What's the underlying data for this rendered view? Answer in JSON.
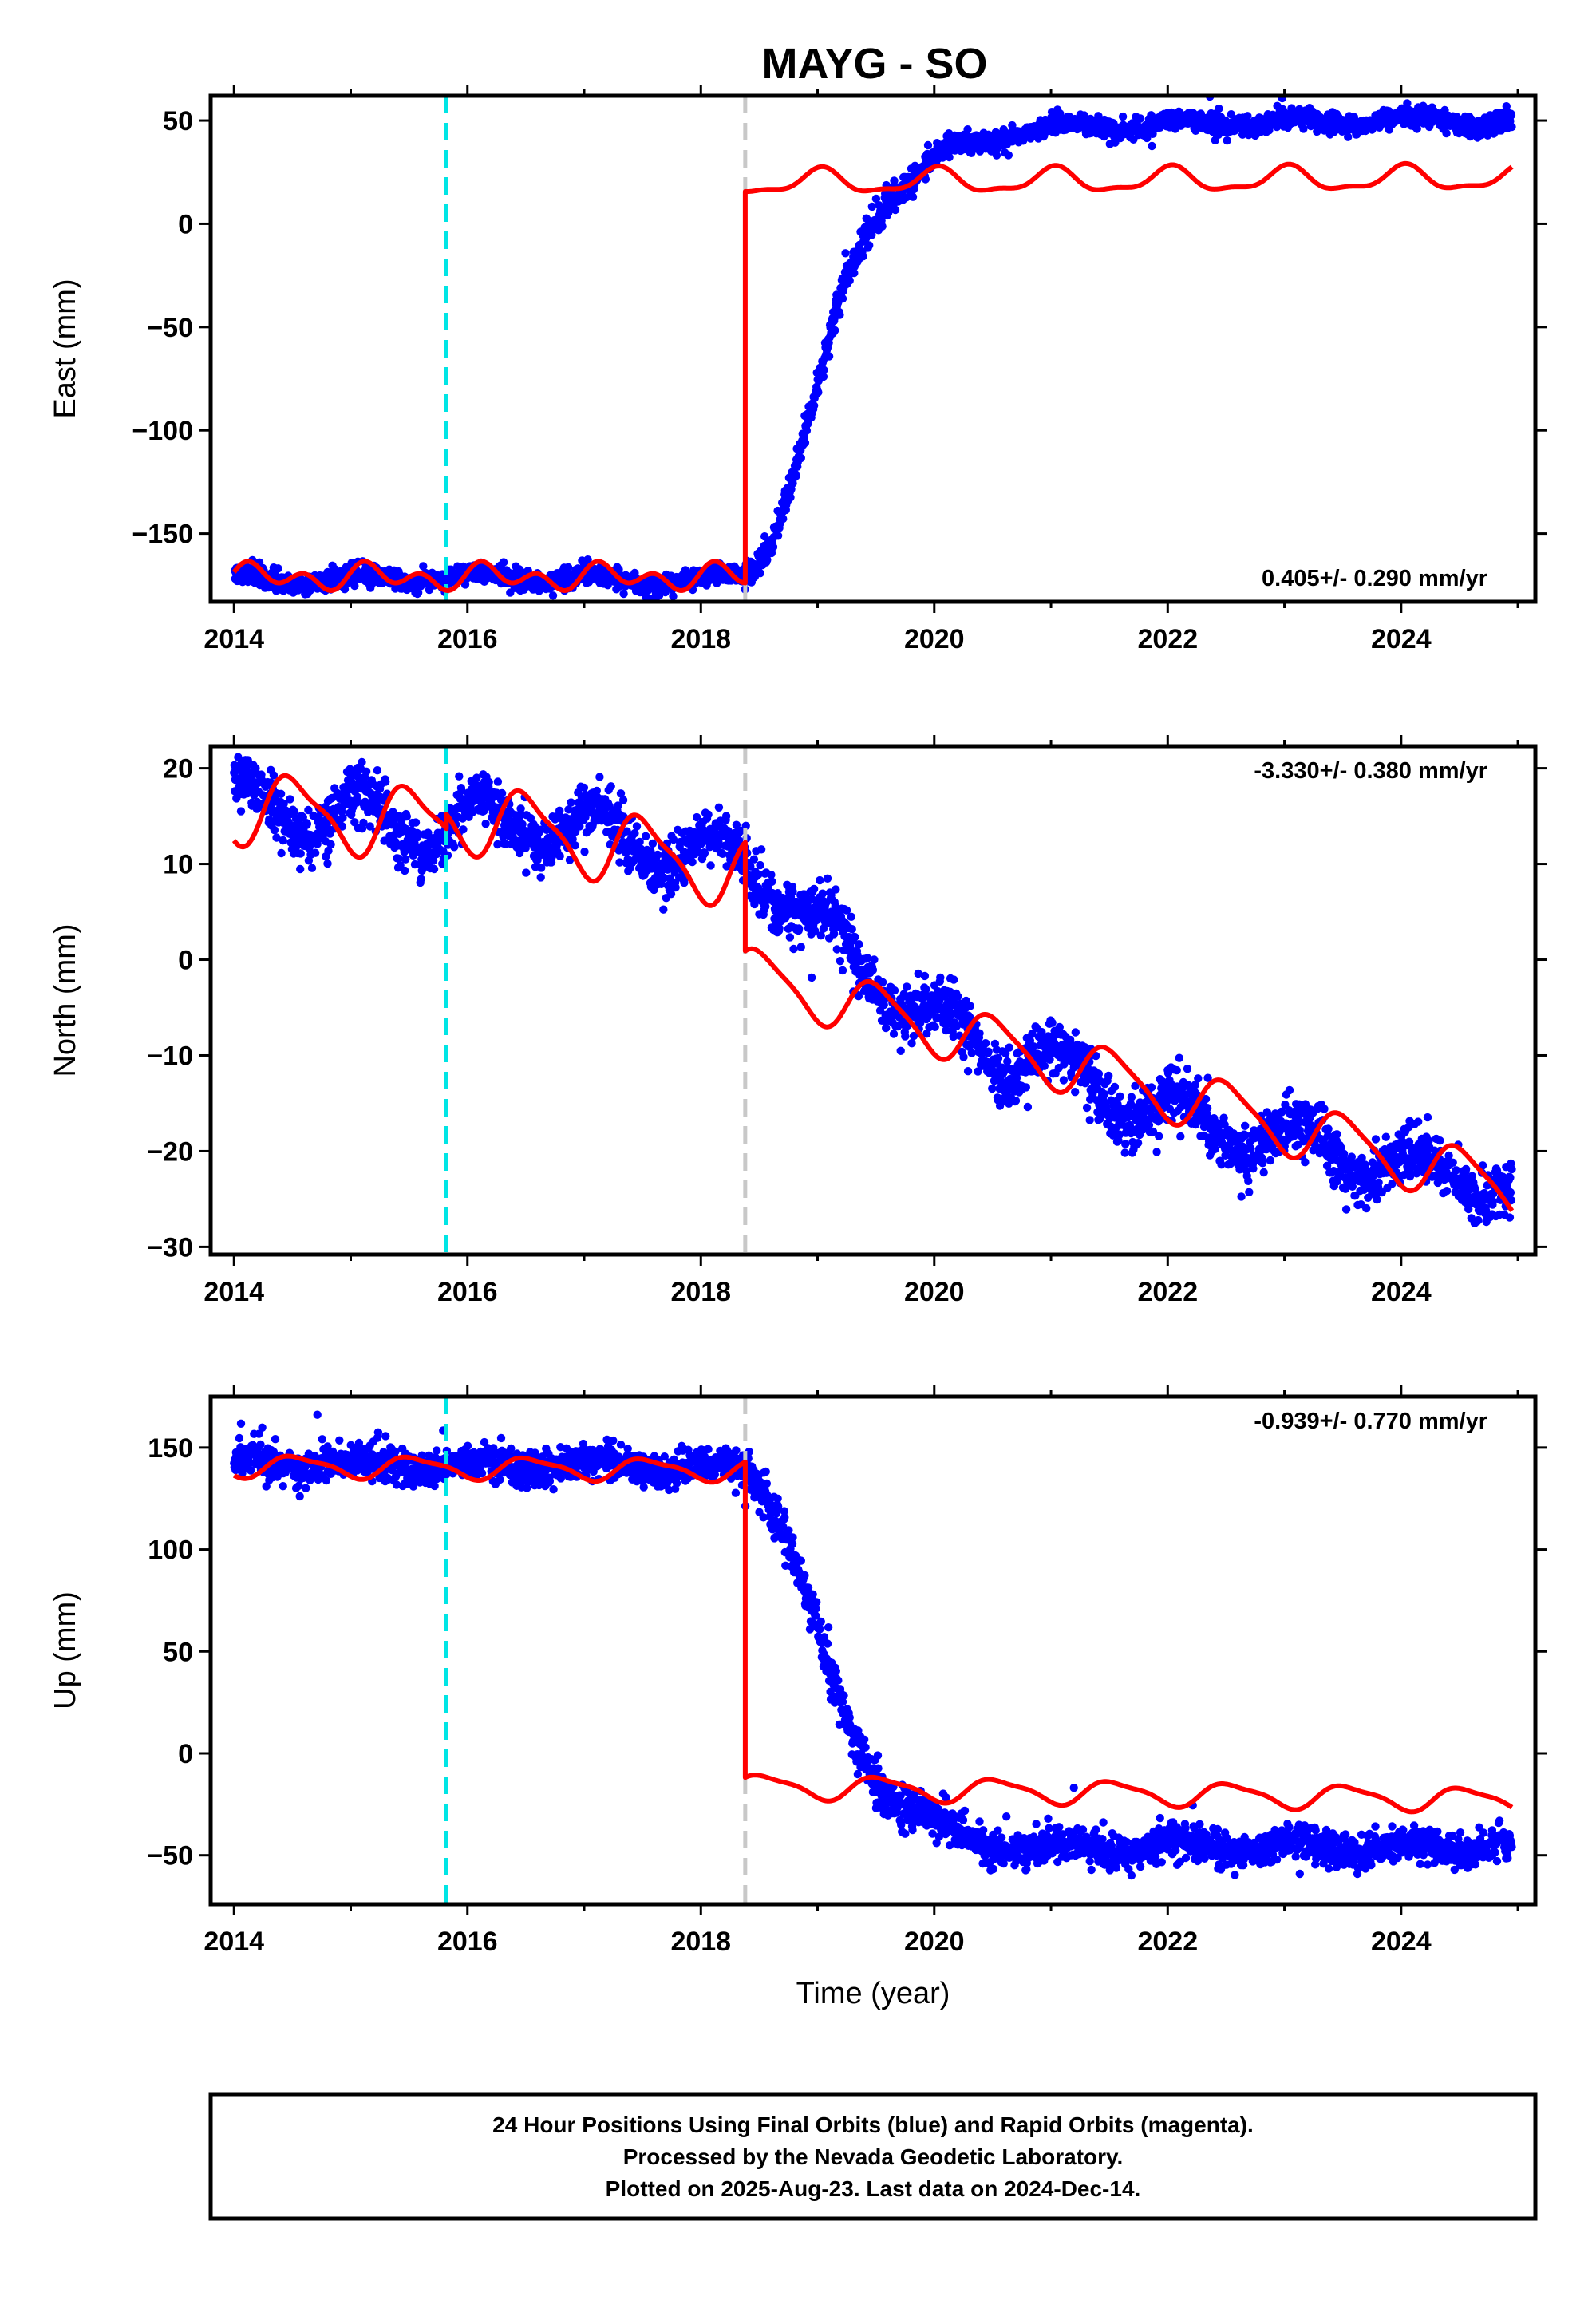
{
  "title": "MAYG - SO",
  "footer": {
    "line1": "24 Hour Positions Using Final Orbits (blue) and Rapid Orbits (magenta).",
    "line2": "Processed by the Nevada Geodetic Laboratory.",
    "line3": "Plotted on 2025-Aug-23. Last data on 2024-Dec-14."
  },
  "colors": {
    "data_points": "#0000ff",
    "model_line": "#ff0000",
    "antenna_change_line": "#00e5e5",
    "equipment_change_line": "#c8c8c8"
  },
  "chart_data": [
    {
      "type": "scatter",
      "component": "east",
      "ylabel": "East (mm)",
      "xlabel": "",
      "xlim": [
        2013.8,
        2025.15
      ],
      "ylim": [
        -183,
        62
      ],
      "xticks": [
        2014,
        2016,
        2018,
        2020,
        2022,
        2024
      ],
      "yticks": [
        50,
        0,
        -50,
        -100,
        -150
      ],
      "ytick_labels": [
        "50",
        "0",
        "−50",
        "−100",
        "−150"
      ],
      "rate_label": "0.405+/- 0.290 mm/yr",
      "rate_position": "bottom-right",
      "vertical_lines": [
        {
          "x": 2015.82,
          "style": "dashed",
          "color": "cyan"
        },
        {
          "x": 2018.38,
          "style": "dashed",
          "color": "gray"
        }
      ],
      "observed_trend": [
        [
          2014.0,
          -172
        ],
        [
          2015.0,
          -172
        ],
        [
          2016.0,
          -171
        ],
        [
          2017.0,
          -172
        ],
        [
          2018.0,
          -173
        ],
        [
          2018.38,
          -170
        ],
        [
          2018.55,
          -160
        ],
        [
          2018.8,
          -120
        ],
        [
          2019.0,
          -80
        ],
        [
          2019.2,
          -35
        ],
        [
          2019.4,
          -5
        ],
        [
          2019.6,
          12
        ],
        [
          2019.8,
          22
        ],
        [
          2020.0,
          30
        ],
        [
          2020.2,
          38
        ],
        [
          2020.5,
          42
        ],
        [
          2021.0,
          46
        ],
        [
          2021.5,
          48
        ],
        [
          2022.0,
          48
        ],
        [
          2022.5,
          49
        ],
        [
          2023.0,
          49
        ],
        [
          2023.5,
          50
        ],
        [
          2024.0,
          50
        ],
        [
          2024.5,
          50
        ],
        [
          2024.95,
          49
        ]
      ],
      "scatter": {
        "sd": 2.3,
        "sd_steep": 3.5,
        "annual_amp": 2.5
      },
      "model": {
        "segments": [
          {
            "x0": 2014.0,
            "x1": 2018.38,
            "base_start": -171,
            "base_end": -171,
            "annual_amp": 3.5,
            "semi_amp": 4.5,
            "phase": 0.35
          },
          {
            "x0": 2018.38,
            "x1": 2024.95,
            "base_start": 20,
            "base_end": 22,
            "annual_amp": 5.5,
            "semi_amp": 2.0,
            "phase": 1.4
          }
        ]
      }
    },
    {
      "type": "scatter",
      "component": "north",
      "ylabel": "North (mm)",
      "xlabel": "",
      "xlim": [
        2013.8,
        2025.15
      ],
      "ylim": [
        -30.8,
        22.3
      ],
      "xticks": [
        2014,
        2016,
        2018,
        2020,
        2022,
        2024
      ],
      "yticks": [
        20,
        10,
        0,
        -10,
        -20,
        -30
      ],
      "ytick_labels": [
        "20",
        "10",
        "0",
        "−10",
        "−20",
        "−30"
      ],
      "rate_label": "-3.330+/- 0.380 mm/yr",
      "rate_position": "top-right",
      "vertical_lines": [
        {
          "x": 2015.82,
          "style": "dashed",
          "color": "cyan"
        },
        {
          "x": 2018.38,
          "style": "dashed",
          "color": "gray"
        }
      ],
      "observed_trend": [
        [
          2014.0,
          16
        ],
        [
          2014.5,
          16
        ],
        [
          2015.0,
          15
        ],
        [
          2015.5,
          14
        ],
        [
          2016.0,
          14
        ],
        [
          2016.5,
          15
        ],
        [
          2017.0,
          13
        ],
        [
          2017.5,
          13
        ],
        [
          2018.0,
          10
        ],
        [
          2018.38,
          11
        ],
        [
          2018.6,
          9
        ],
        [
          2019.0,
          3
        ],
        [
          2019.5,
          -1
        ],
        [
          2020.0,
          -7
        ],
        [
          2020.5,
          -9
        ],
        [
          2021.0,
          -11
        ],
        [
          2021.5,
          -13
        ],
        [
          2022.0,
          -17
        ],
        [
          2022.5,
          -17
        ],
        [
          2023.0,
          -20
        ],
        [
          2023.5,
          -19
        ],
        [
          2024.0,
          -23
        ],
        [
          2024.5,
          -21
        ],
        [
          2024.95,
          -25
        ]
      ],
      "scatter": {
        "sd": 1.4,
        "sd_steep": 1.4,
        "annual_amp": 2.8
      },
      "model": {
        "segments": [
          {
            "x0": 2014.0,
            "x1": 2015.82,
            "base_start": 16,
            "base_end": 14,
            "annual_amp": 3.5,
            "semi_amp": 1.0,
            "phase": 4.6
          },
          {
            "x0": 2015.82,
            "x1": 2018.38,
            "base_start": 15.5,
            "base_end": 9,
            "annual_amp": 3.5,
            "semi_amp": 1.0,
            "phase": 4.6
          },
          {
            "x0": 2018.38,
            "x1": 2024.95,
            "base_start": -1.5,
            "base_end": -24,
            "annual_amp": 2.8,
            "semi_amp": 0.6,
            "phase": 4.6
          }
        ]
      }
    },
    {
      "type": "scatter",
      "component": "up",
      "ylabel": "Up (mm)",
      "xlabel": "Time (year)",
      "xlim": [
        2013.8,
        2025.15
      ],
      "ylim": [
        -74,
        175
      ],
      "xticks": [
        2014,
        2016,
        2018,
        2020,
        2022,
        2024
      ],
      "yticks": [
        150,
        100,
        50,
        0,
        -50
      ],
      "ytick_labels": [
        "150",
        "100",
        "50",
        "0",
        "−50"
      ],
      "rate_label": "-0.939+/- 0.770 mm/yr",
      "rate_position": "top-right",
      "vertical_lines": [
        {
          "x": 2015.82,
          "style": "dashed",
          "color": "cyan"
        },
        {
          "x": 2018.38,
          "style": "dashed",
          "color": "gray"
        }
      ],
      "observed_trend": [
        [
          2014.0,
          143
        ],
        [
          2015.0,
          142
        ],
        [
          2016.0,
          141
        ],
        [
          2017.0,
          142
        ],
        [
          2018.0,
          140
        ],
        [
          2018.38,
          140
        ],
        [
          2018.55,
          130
        ],
        [
          2018.75,
          105
        ],
        [
          2019.0,
          60
        ],
        [
          2019.2,
          20
        ],
        [
          2019.4,
          -5
        ],
        [
          2019.6,
          -18
        ],
        [
          2019.8,
          -27
        ],
        [
          2020.0,
          -33
        ],
        [
          2020.2,
          -40
        ],
        [
          2020.5,
          -45
        ],
        [
          2021.0,
          -47
        ],
        [
          2021.5,
          -47
        ],
        [
          2022.0,
          -45
        ],
        [
          2022.5,
          -46
        ],
        [
          2023.0,
          -46
        ],
        [
          2023.5,
          -46
        ],
        [
          2024.0,
          -47
        ],
        [
          2024.5,
          -46
        ],
        [
          2024.95,
          -44
        ]
      ],
      "scatter": {
        "sd": 4.2,
        "sd_steep": 5.5,
        "annual_amp": 3.0
      },
      "model": {
        "segments": [
          {
            "x0": 2014.0,
            "x1": 2018.38,
            "base_start": 141,
            "base_end": 139,
            "annual_amp": 5.0,
            "semi_amp": 1.5,
            "phase": 4.4
          },
          {
            "x0": 2018.38,
            "x1": 2024.95,
            "base_start": -16,
            "base_end": -23,
            "annual_amp": 5.5,
            "semi_amp": 1.5,
            "phase": 4.4
          }
        ]
      }
    }
  ]
}
